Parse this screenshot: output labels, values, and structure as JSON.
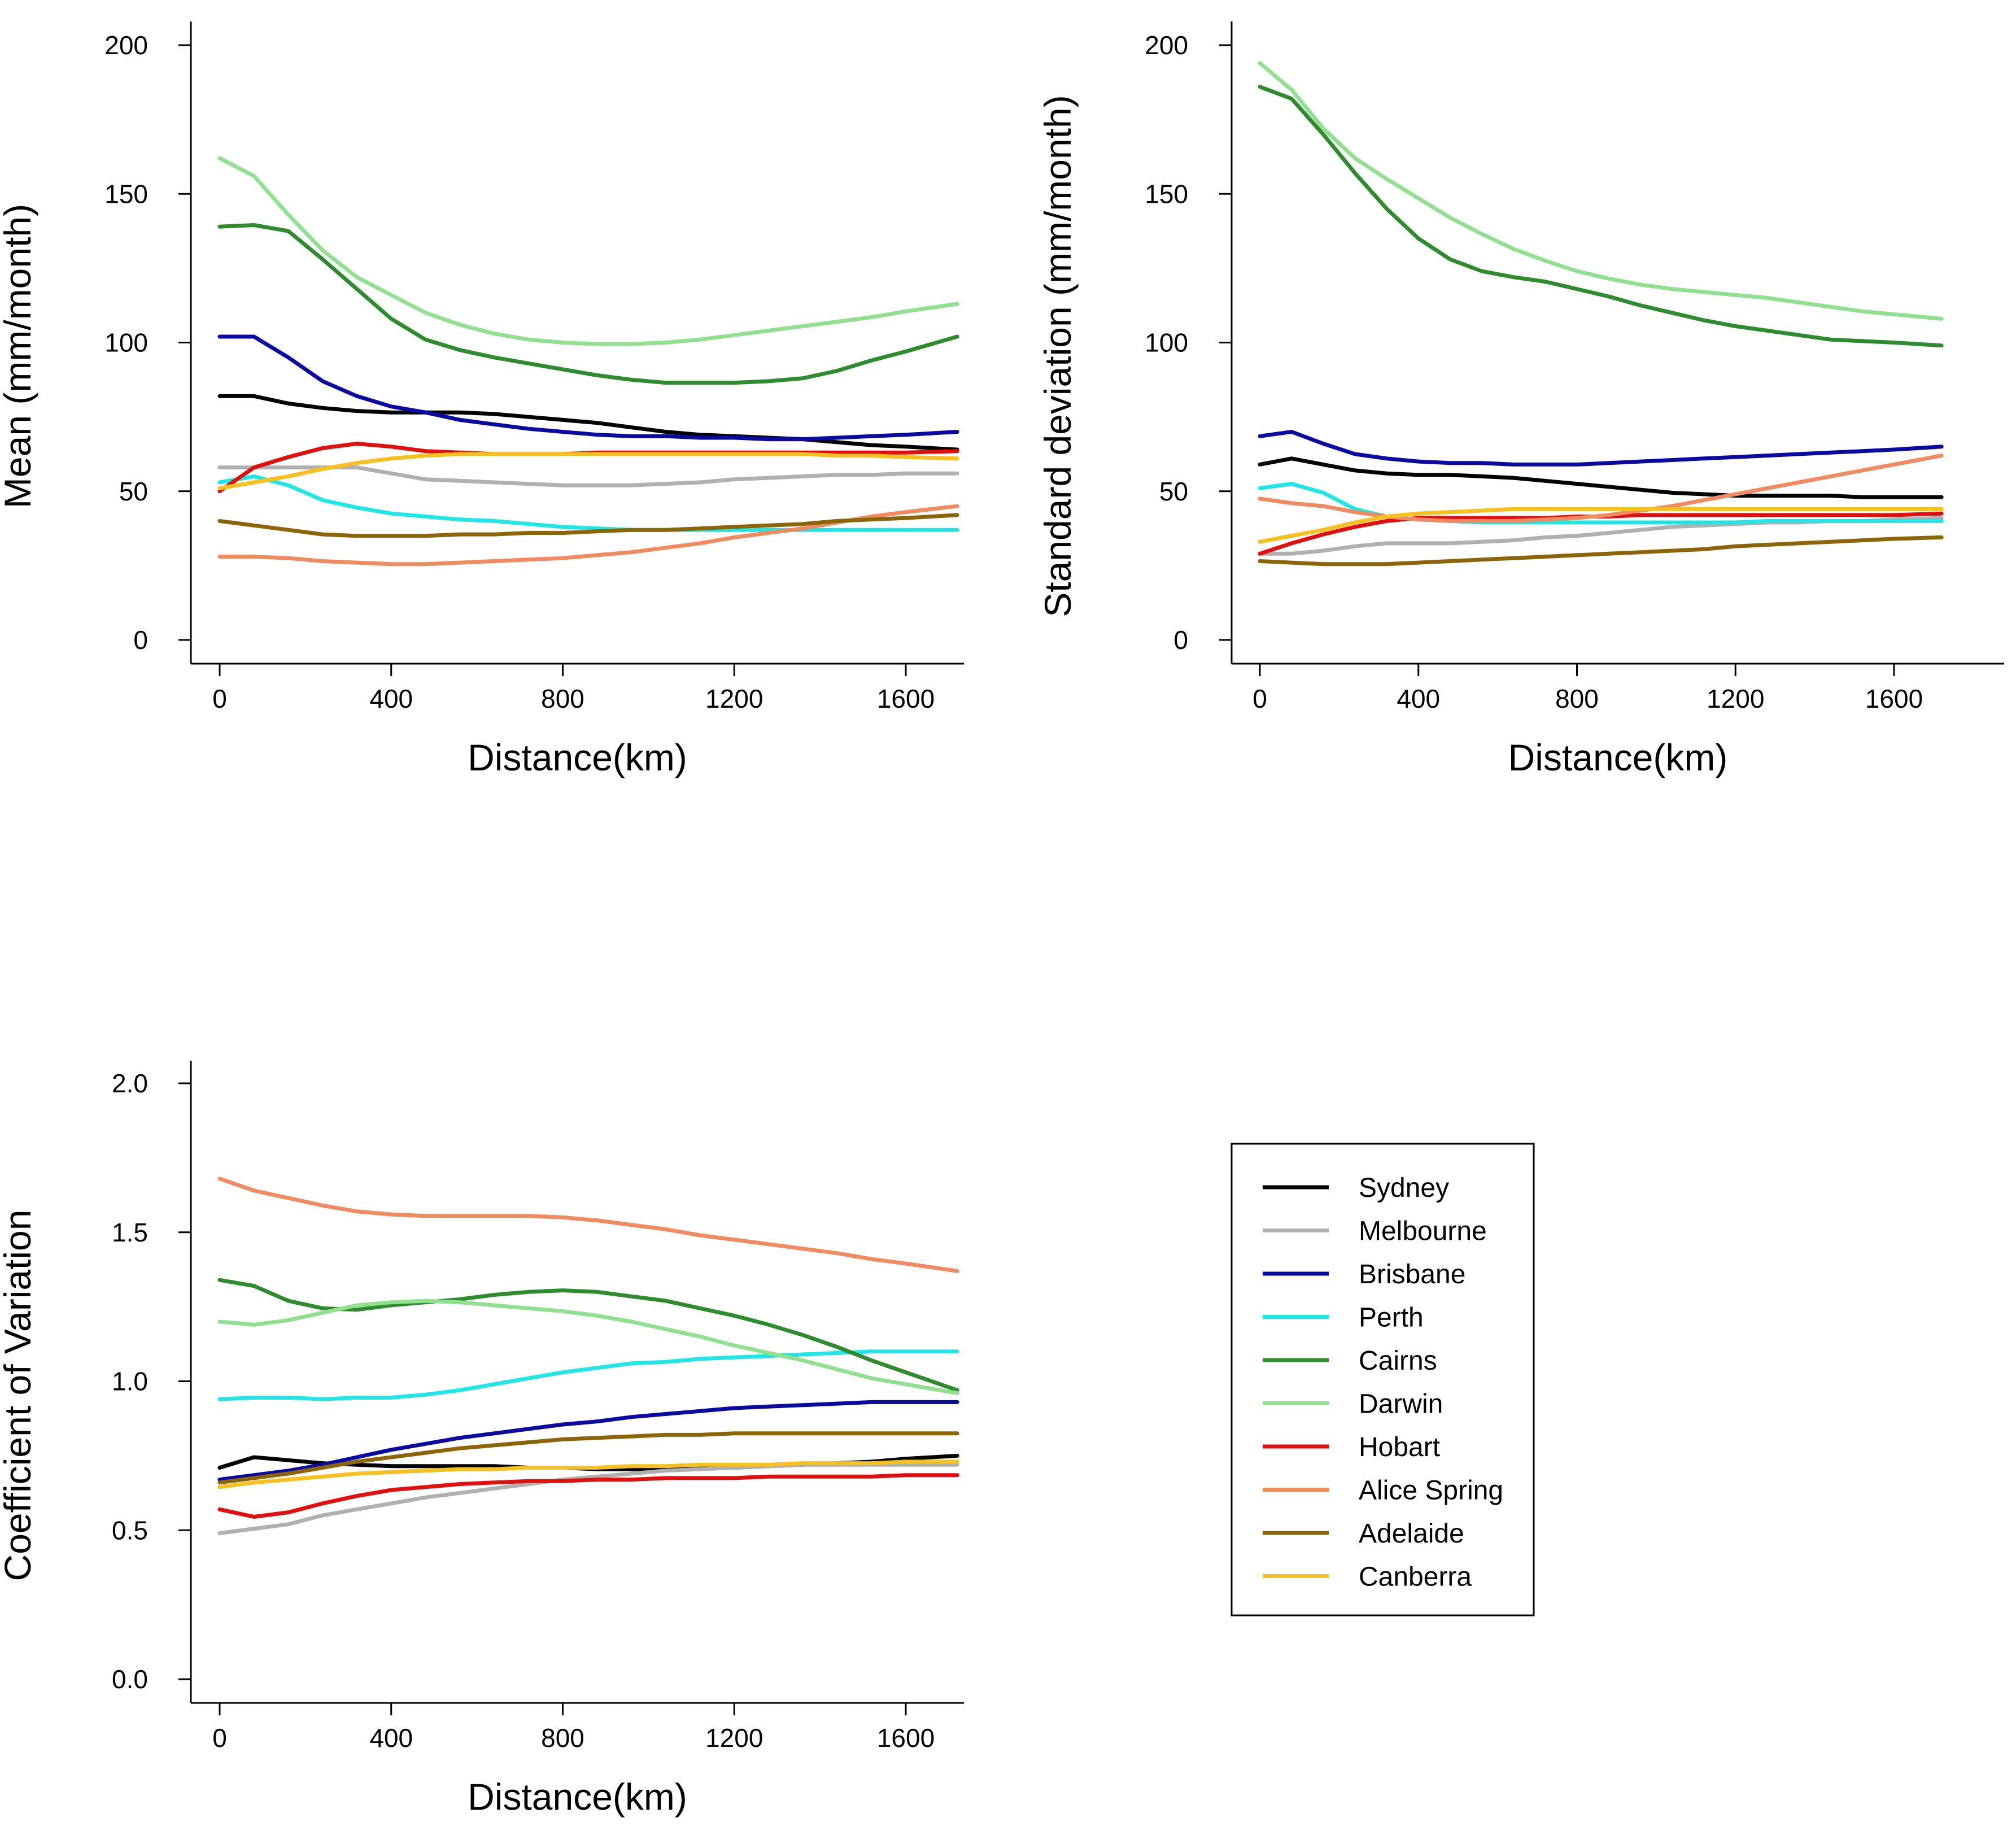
{
  "figure": {
    "legend_title": ""
  },
  "series_meta": [
    {
      "name": "Sydney",
      "color": "#000000"
    },
    {
      "name": "Melbourne",
      "color": "#b0b0b0"
    },
    {
      "name": "Brisbane",
      "color": "#0a0aa0"
    },
    {
      "name": "Perth",
      "color": "#22e6e6"
    },
    {
      "name": "Cairns",
      "color": "#2e8b2e"
    },
    {
      "name": "Darwin",
      "color": "#90e090"
    },
    {
      "name": "Hobart",
      "color": "#e01010"
    },
    {
      "name": "Alice Spring",
      "color": "#f08a60"
    },
    {
      "name": "Adelaide",
      "color": "#8b6508"
    },
    {
      "name": "Canberra",
      "color": "#f5c020"
    }
  ],
  "chart_data": [
    {
      "type": "line",
      "id": "mean",
      "title": "",
      "xlabel": "Distance(km)",
      "ylabel": "Mean (mm/month)",
      "xlim": [
        0,
        1720
      ],
      "ylim": [
        0,
        200
      ],
      "xticks": [
        0,
        400,
        800,
        1200,
        1600
      ],
      "xtick_labels": [
        "0",
        "400",
        "800",
        "1200",
        "1600"
      ],
      "yticks": [
        0,
        50,
        100,
        150,
        200
      ],
      "ytick_labels": [
        "0",
        "50",
        "100",
        "150",
        "200"
      ],
      "x": [
        0,
        80,
        160,
        240,
        320,
        400,
        480,
        560,
        640,
        720,
        800,
        880,
        960,
        1040,
        1120,
        1200,
        1280,
        1360,
        1440,
        1520,
        1600,
        1720
      ],
      "series": [
        {
          "name": "Sydney",
          "values": [
            82,
            82,
            79.5,
            78,
            77,
            76.5,
            76.5,
            76.5,
            76,
            75,
            74,
            73,
            71.5,
            70,
            69,
            68.5,
            68,
            67.5,
            66.5,
            65.5,
            65,
            64
          ]
        },
        {
          "name": "Melbourne",
          "values": [
            58,
            58,
            58,
            58,
            58,
            56,
            54,
            53.5,
            53,
            52.5,
            52,
            52,
            52,
            52.5,
            53,
            54,
            54.5,
            55,
            55.5,
            55.5,
            56,
            56
          ]
        },
        {
          "name": "Brisbane",
          "values": [
            102,
            102,
            95,
            87,
            82,
            78.5,
            76.5,
            74,
            72.5,
            71,
            70,
            69,
            68.5,
            68.5,
            68,
            68,
            67.5,
            67.5,
            68,
            68.5,
            69,
            70
          ]
        },
        {
          "name": "Perth",
          "values": [
            53,
            55,
            52,
            47,
            44.5,
            42.5,
            41.5,
            40.5,
            40,
            39,
            38,
            37.5,
            37,
            37,
            37,
            37,
            37,
            37,
            37,
            37,
            37,
            37
          ]
        },
        {
          "name": "Cairns",
          "values": [
            139,
            139.5,
            137.5,
            128,
            118,
            108,
            101,
            97.5,
            95,
            93,
            91,
            89,
            87.5,
            86.5,
            86.5,
            86.5,
            87,
            88,
            90.5,
            94,
            97,
            102
          ]
        },
        {
          "name": "Darwin",
          "values": [
            162,
            156,
            143,
            131,
            122,
            116,
            110,
            106,
            103,
            101,
            100,
            99.5,
            99.5,
            100,
            101,
            102.5,
            104,
            105.5,
            107,
            108.5,
            110.5,
            113
          ]
        },
        {
          "name": "Hobart",
          "values": [
            50,
            58,
            61.5,
            64.5,
            66,
            65,
            63.5,
            63,
            62.5,
            62.5,
            62.5,
            63,
            63,
            63,
            63,
            63,
            63,
            63,
            63,
            63,
            63,
            63.5
          ]
        },
        {
          "name": "Alice Spring",
          "values": [
            28,
            28,
            27.5,
            26.5,
            26,
            25.5,
            25.5,
            26,
            26.5,
            27,
            27.5,
            28.5,
            29.5,
            31,
            32.5,
            34.5,
            36,
            37.5,
            39.5,
            41.5,
            43,
            45
          ]
        },
        {
          "name": "Adelaide",
          "values": [
            40,
            38.5,
            37,
            35.5,
            35,
            35,
            35,
            35.5,
            35.5,
            36,
            36,
            36.5,
            37,
            37,
            37.5,
            38,
            38.5,
            39,
            40,
            40.5,
            41,
            42
          ]
        },
        {
          "name": "Canberra",
          "values": [
            51,
            53,
            55,
            57.5,
            59.5,
            61,
            62,
            62.5,
            62.5,
            62.5,
            62.5,
            62.5,
            62.5,
            62.5,
            62.5,
            62.5,
            62.5,
            62.5,
            62,
            62,
            61.5,
            61
          ]
        }
      ]
    },
    {
      "type": "line",
      "id": "sd",
      "title": "",
      "xlabel": "Distance(km)",
      "ylabel": "Standard deviation (mm/month)",
      "xlim": [
        0,
        1720
      ],
      "ylim": [
        0,
        200
      ],
      "xticks": [
        0,
        400,
        800,
        1200,
        1600
      ],
      "xtick_labels": [
        "0",
        "400",
        "800",
        "1200",
        "1600"
      ],
      "yticks": [
        0,
        50,
        100,
        150,
        200
      ],
      "ytick_labels": [
        "0",
        "50",
        "100",
        "150",
        "200"
      ],
      "x": [
        0,
        80,
        160,
        240,
        320,
        400,
        480,
        560,
        640,
        720,
        800,
        880,
        960,
        1040,
        1120,
        1200,
        1280,
        1360,
        1440,
        1520,
        1600,
        1720
      ],
      "series": [
        {
          "name": "Sydney",
          "values": [
            59,
            61,
            59,
            57,
            56,
            55.5,
            55.5,
            55,
            54.5,
            53.5,
            52.5,
            51.5,
            50.5,
            49.5,
            49,
            48.5,
            48.5,
            48.5,
            48.5,
            48,
            48,
            48
          ]
        },
        {
          "name": "Melbourne",
          "values": [
            29,
            29,
            30,
            31.5,
            32.5,
            32.5,
            32.5,
            33,
            33.5,
            34.5,
            35,
            36,
            37,
            38,
            38.5,
            39,
            39.5,
            39.5,
            40,
            40,
            40.5,
            41
          ]
        },
        {
          "name": "Brisbane",
          "values": [
            68.5,
            70,
            66,
            62.5,
            61,
            60,
            59.5,
            59.5,
            59,
            59,
            59,
            59.5,
            60,
            60.5,
            61,
            61.5,
            62,
            62.5,
            63,
            63.5,
            64,
            65
          ]
        },
        {
          "name": "Perth",
          "values": [
            51,
            52.5,
            49.5,
            44,
            41.5,
            40.5,
            40,
            39.5,
            39.5,
            39.5,
            39.5,
            39.5,
            39.5,
            39.5,
            39.5,
            39.5,
            40,
            40,
            40,
            40,
            40,
            40
          ]
        },
        {
          "name": "Cairns",
          "values": [
            186,
            182,
            170,
            157,
            145,
            135,
            128,
            124,
            122,
            120.5,
            118,
            115.5,
            112.5,
            110,
            107.5,
            105.5,
            104,
            102.5,
            101,
            100.5,
            100,
            99
          ]
        },
        {
          "name": "Darwin",
          "values": [
            194,
            185,
            172,
            162,
            155,
            148.5,
            142,
            136.5,
            131.5,
            127.5,
            124,
            121.5,
            119.5,
            118,
            117,
            116,
            115,
            113.5,
            112,
            110.5,
            109.5,
            108
          ]
        },
        {
          "name": "Hobart",
          "values": [
            29,
            32.5,
            35.5,
            38,
            40,
            41,
            41,
            41,
            41,
            41,
            41.5,
            41.5,
            42,
            42,
            42,
            42,
            42,
            42,
            42,
            42,
            42,
            42.5
          ]
        },
        {
          "name": "Alice Spring",
          "values": [
            47.5,
            46,
            45,
            43,
            41.5,
            40.5,
            40,
            40,
            40,
            40.5,
            41,
            42,
            43.5,
            45,
            47,
            49,
            51,
            53,
            55,
            57,
            59,
            62
          ]
        },
        {
          "name": "Adelaide",
          "values": [
            26.5,
            26,
            25.5,
            25.5,
            25.5,
            26,
            26.5,
            27,
            27.5,
            28,
            28.5,
            29,
            29.5,
            30,
            30.5,
            31.5,
            32,
            32.5,
            33,
            33.5,
            34,
            34.5
          ]
        },
        {
          "name": "Canberra",
          "values": [
            33,
            35,
            37,
            39.5,
            41.5,
            42.5,
            43,
            43.5,
            44,
            44,
            44,
            44,
            44,
            44,
            44,
            44,
            44,
            44,
            44,
            44,
            44,
            44
          ]
        }
      ]
    },
    {
      "type": "line",
      "id": "cv",
      "title": "",
      "xlabel": "Distance(km)",
      "ylabel": "Coefficient of Variation",
      "xlim": [
        0,
        1720
      ],
      "ylim": [
        0,
        2
      ],
      "xticks": [
        0,
        400,
        800,
        1200,
        1600
      ],
      "xtick_labels": [
        "0",
        "400",
        "800",
        "1200",
        "1600"
      ],
      "yticks": [
        0,
        0.5,
        1,
        1.5,
        2
      ],
      "ytick_labels": [
        "0.0",
        "0.5",
        "1.0",
        "1.5",
        "2.0"
      ],
      "x": [
        0,
        80,
        160,
        240,
        320,
        400,
        480,
        560,
        640,
        720,
        800,
        880,
        960,
        1040,
        1120,
        1200,
        1280,
        1360,
        1440,
        1520,
        1600,
        1720
      ],
      "series": [
        {
          "name": "Sydney",
          "values": [
            0.71,
            0.745,
            0.735,
            0.725,
            0.72,
            0.715,
            0.715,
            0.715,
            0.715,
            0.71,
            0.71,
            0.705,
            0.705,
            0.705,
            0.71,
            0.71,
            0.715,
            0.72,
            0.725,
            0.73,
            0.74,
            0.75
          ]
        },
        {
          "name": "Melbourne",
          "values": [
            0.49,
            0.505,
            0.52,
            0.55,
            0.57,
            0.59,
            0.61,
            0.625,
            0.64,
            0.655,
            0.67,
            0.68,
            0.69,
            0.7,
            0.705,
            0.71,
            0.715,
            0.72,
            0.72,
            0.72,
            0.72,
            0.72
          ]
        },
        {
          "name": "Brisbane",
          "values": [
            0.67,
            0.685,
            0.7,
            0.72,
            0.745,
            0.77,
            0.79,
            0.81,
            0.825,
            0.84,
            0.855,
            0.865,
            0.88,
            0.89,
            0.9,
            0.91,
            0.915,
            0.92,
            0.925,
            0.93,
            0.93,
            0.93
          ]
        },
        {
          "name": "Perth",
          "values": [
            0.94,
            0.945,
            0.945,
            0.94,
            0.945,
            0.945,
            0.955,
            0.97,
            0.99,
            1.01,
            1.03,
            1.045,
            1.06,
            1.065,
            1.075,
            1.08,
            1.085,
            1.09,
            1.095,
            1.1,
            1.1,
            1.1
          ]
        },
        {
          "name": "Cairns",
          "values": [
            1.34,
            1.32,
            1.27,
            1.245,
            1.24,
            1.255,
            1.265,
            1.275,
            1.29,
            1.3,
            1.305,
            1.3,
            1.285,
            1.27,
            1.245,
            1.22,
            1.19,
            1.155,
            1.115,
            1.07,
            1.03,
            0.97
          ]
        },
        {
          "name": "Darwin",
          "values": [
            1.2,
            1.19,
            1.205,
            1.23,
            1.255,
            1.265,
            1.27,
            1.265,
            1.255,
            1.245,
            1.235,
            1.22,
            1.2,
            1.175,
            1.15,
            1.12,
            1.095,
            1.07,
            1.04,
            1.01,
            0.99,
            0.96
          ]
        },
        {
          "name": "Hobart",
          "values": [
            0.57,
            0.545,
            0.56,
            0.59,
            0.615,
            0.635,
            0.645,
            0.655,
            0.66,
            0.665,
            0.665,
            0.67,
            0.67,
            0.675,
            0.675,
            0.675,
            0.68,
            0.68,
            0.68,
            0.68,
            0.685,
            0.685
          ]
        },
        {
          "name": "Alice Spring",
          "values": [
            1.68,
            1.64,
            1.615,
            1.59,
            1.57,
            1.56,
            1.555,
            1.555,
            1.555,
            1.555,
            1.55,
            1.54,
            1.525,
            1.51,
            1.49,
            1.475,
            1.46,
            1.445,
            1.43,
            1.41,
            1.395,
            1.37
          ]
        },
        {
          "name": "Adelaide",
          "values": [
            0.66,
            0.675,
            0.69,
            0.71,
            0.73,
            0.745,
            0.76,
            0.775,
            0.785,
            0.795,
            0.805,
            0.81,
            0.815,
            0.82,
            0.82,
            0.825,
            0.825,
            0.825,
            0.825,
            0.825,
            0.825,
            0.825
          ]
        },
        {
          "name": "Canberra",
          "values": [
            0.645,
            0.66,
            0.67,
            0.68,
            0.69,
            0.695,
            0.7,
            0.705,
            0.705,
            0.71,
            0.71,
            0.71,
            0.715,
            0.715,
            0.72,
            0.72,
            0.72,
            0.725,
            0.725,
            0.725,
            0.73,
            0.73
          ]
        }
      ]
    }
  ]
}
